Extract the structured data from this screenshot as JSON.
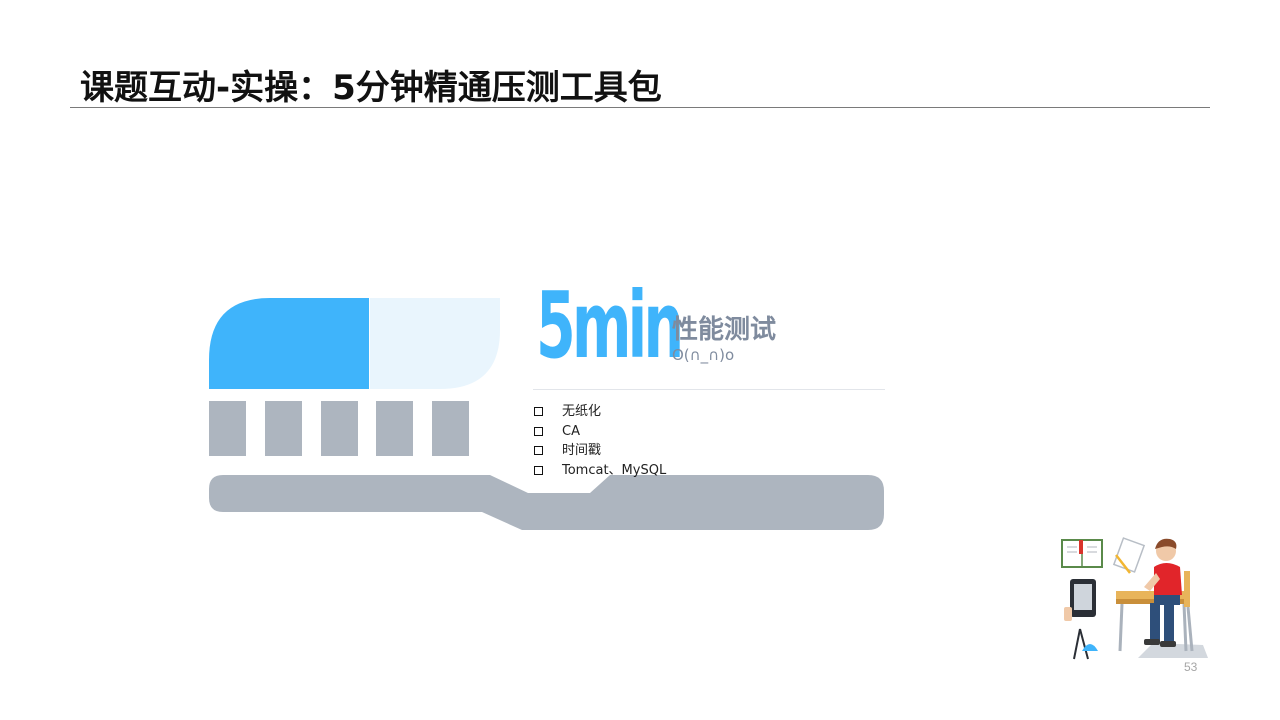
{
  "header": {
    "title": "课题互动-实操：5分钟精通压测工具包"
  },
  "duration": {
    "label": "5min"
  },
  "topic": {
    "title": "性能测试",
    "emoticon": "O(∩_∩)o"
  },
  "items": [
    "无纸化",
    "CA",
    "时间戳",
    "Tomcat、MySQL"
  ],
  "footer": {
    "page_number": "53"
  },
  "colors": {
    "accent": "#3fb4fb",
    "accent_light": "#e9f5fd",
    "gray": "#adb5bf",
    "text_gray": "#7f8b9e"
  }
}
